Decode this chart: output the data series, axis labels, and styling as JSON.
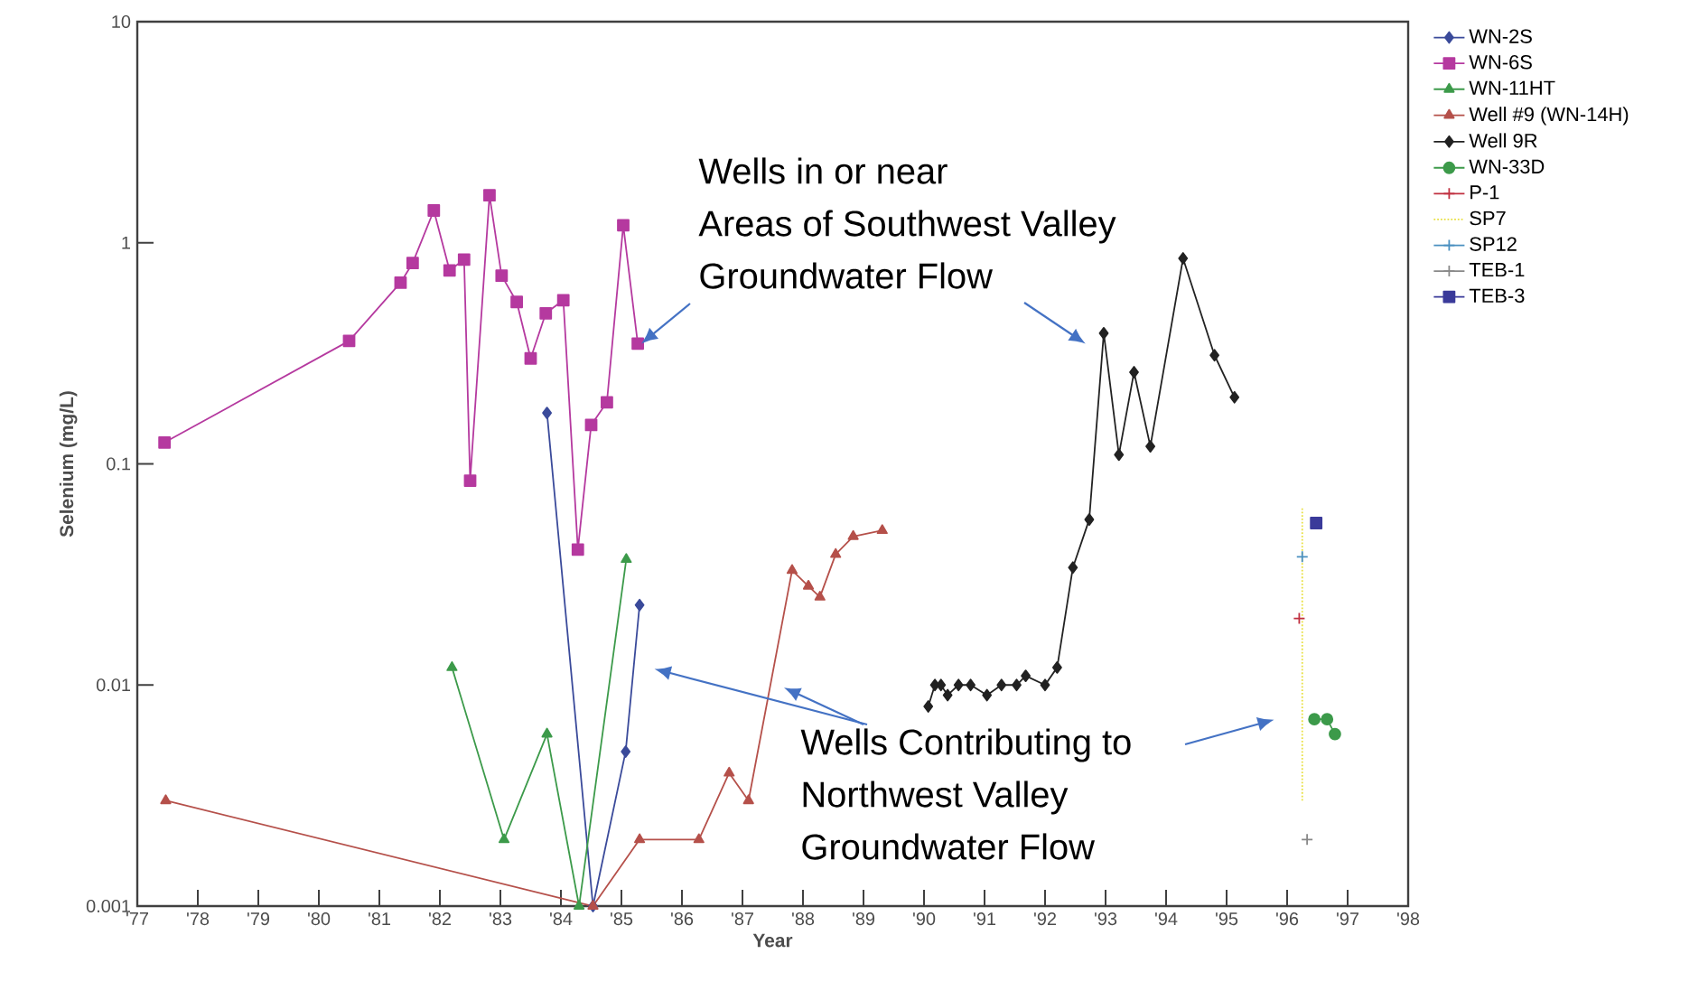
{
  "chart_data": {
    "type": "line",
    "xlabel": "Year",
    "ylabel": "Selenium (mg/L)",
    "log": "y",
    "legend": "right",
    "xlim": [
      1977,
      1998
    ],
    "ylim": [
      0.001,
      10
    ],
    "xticks": [
      {
        "value": 1977,
        "label": "'77"
      },
      {
        "value": 1978,
        "label": "'78"
      },
      {
        "value": 1979,
        "label": "'79"
      },
      {
        "value": 1980,
        "label": "'80"
      },
      {
        "value": 1981,
        "label": "'81"
      },
      {
        "value": 1982,
        "label": "'82"
      },
      {
        "value": 1983,
        "label": "'83"
      },
      {
        "value": 1984,
        "label": "'84"
      },
      {
        "value": 1985,
        "label": "'85"
      },
      {
        "value": 1986,
        "label": "'86"
      },
      {
        "value": 1987,
        "label": "'87"
      },
      {
        "value": 1988,
        "label": "'88"
      },
      {
        "value": 1989,
        "label": "'89"
      },
      {
        "value": 1990,
        "label": "'90"
      },
      {
        "value": 1991,
        "label": "'91"
      },
      {
        "value": 1992,
        "label": "'92"
      },
      {
        "value": 1993,
        "label": "'93"
      },
      {
        "value": 1994,
        "label": "'94"
      },
      {
        "value": 1995,
        "label": "'95"
      },
      {
        "value": 1996,
        "label": "'96"
      },
      {
        "value": 1997,
        "label": "'97"
      },
      {
        "value": 1998,
        "label": "'98"
      }
    ],
    "yticks": [
      0.001,
      0.01,
      0.1,
      1,
      10
    ],
    "series": [
      {
        "name": "WN-2S",
        "color": "#3a4a9a",
        "marker": "diamond",
        "x": [
          1983.77,
          1984.53,
          1985.07,
          1985.3
        ],
        "values": [
          0.17,
          0.001,
          0.005,
          0.023
        ]
      },
      {
        "name": "WN-6S",
        "color": "#b5399f",
        "marker": "square",
        "x": [
          1977.45,
          1980.5,
          1981.35,
          1981.55,
          1981.9,
          1982.16,
          1982.4,
          1982.5,
          1982.82,
          1983.02,
          1983.27,
          1983.5,
          1983.75,
          1984.04,
          1984.28,
          1984.5,
          1984.76,
          1985.03,
          1985.27
        ],
        "values": [
          0.125,
          0.36,
          0.66,
          0.81,
          1.4,
          0.75,
          0.84,
          0.084,
          1.64,
          0.71,
          0.54,
          0.3,
          0.48,
          0.55,
          0.041,
          0.15,
          0.19,
          1.2,
          0.35
        ]
      },
      {
        "name": "WN-11HT",
        "color": "#3c9a4a",
        "marker": "triangle",
        "x": [
          1982.2,
          1983.06,
          1983.77,
          1984.3,
          1985.08
        ],
        "values": [
          0.012,
          0.002,
          0.006,
          0.001,
          0.037
        ]
      },
      {
        "name": "Well #9 (WN-14H)",
        "color": "#b5504a",
        "marker": "triangle",
        "x": [
          1977.47,
          1984.53,
          1985.3,
          1986.28,
          1986.78,
          1987.1,
          1987.82,
          1988.09,
          1988.28,
          1988.54,
          1988.83,
          1989.31
        ],
        "values": [
          0.003,
          0.001,
          0.002,
          0.002,
          0.004,
          0.003,
          0.033,
          0.028,
          0.025,
          0.039,
          0.047,
          0.05
        ]
      },
      {
        "name": "Well 9R",
        "color": "#222222",
        "marker": "diamond",
        "x": [
          1990.07,
          1990.18,
          1990.28,
          1990.39,
          1990.57,
          1990.77,
          1991.04,
          1991.28,
          1991.53,
          1991.68,
          1992.0,
          1992.2,
          1992.46,
          1992.73,
          1992.97,
          1993.22,
          1993.47,
          1993.74,
          1994.28,
          1994.8,
          1995.13
        ],
        "values": [
          0.008,
          0.01,
          0.01,
          0.009,
          0.01,
          0.01,
          0.009,
          0.01,
          0.01,
          0.011,
          0.01,
          0.012,
          0.034,
          0.056,
          0.39,
          0.11,
          0.26,
          0.12,
          0.85,
          0.31,
          0.2
        ]
      },
      {
        "name": "WN-33D",
        "color": "#3c9a4a",
        "marker": "circle",
        "x": [
          1996.45,
          1996.66,
          1996.79
        ],
        "values": [
          0.007,
          0.007,
          0.006
        ]
      },
      {
        "name": "P-1",
        "color": "#c03040",
        "marker": "cross",
        "x": [
          1996.2
        ],
        "values": [
          0.02
        ]
      },
      {
        "name": "SP7",
        "color": "#e8e040",
        "marker": "none",
        "line_style": "dotted",
        "x": [
          1996.25,
          1996.25
        ],
        "values": [
          0.063,
          0.003
        ]
      },
      {
        "name": "SP12",
        "color": "#4a90c0",
        "marker": "cross",
        "x": [
          1996.25
        ],
        "values": [
          0.038
        ]
      },
      {
        "name": "TEB-1",
        "color": "#888888",
        "marker": "cross",
        "x": [
          1996.33
        ],
        "values": [
          0.002
        ]
      },
      {
        "name": "TEB-3",
        "color": "#3a3a9a",
        "marker": "square",
        "x": [
          1996.48
        ],
        "values": [
          0.054
        ]
      }
    ],
    "annotations": [
      "Wells in or near",
      "Areas of Southwest Valley",
      {
        "text": "Groundwater Flow",
        "x": 1985.33,
        "y": 0.35
      },
      "Wells Contributing to",
      "Northwest Valley",
      "Groundwater Flow"
    ]
  }
}
